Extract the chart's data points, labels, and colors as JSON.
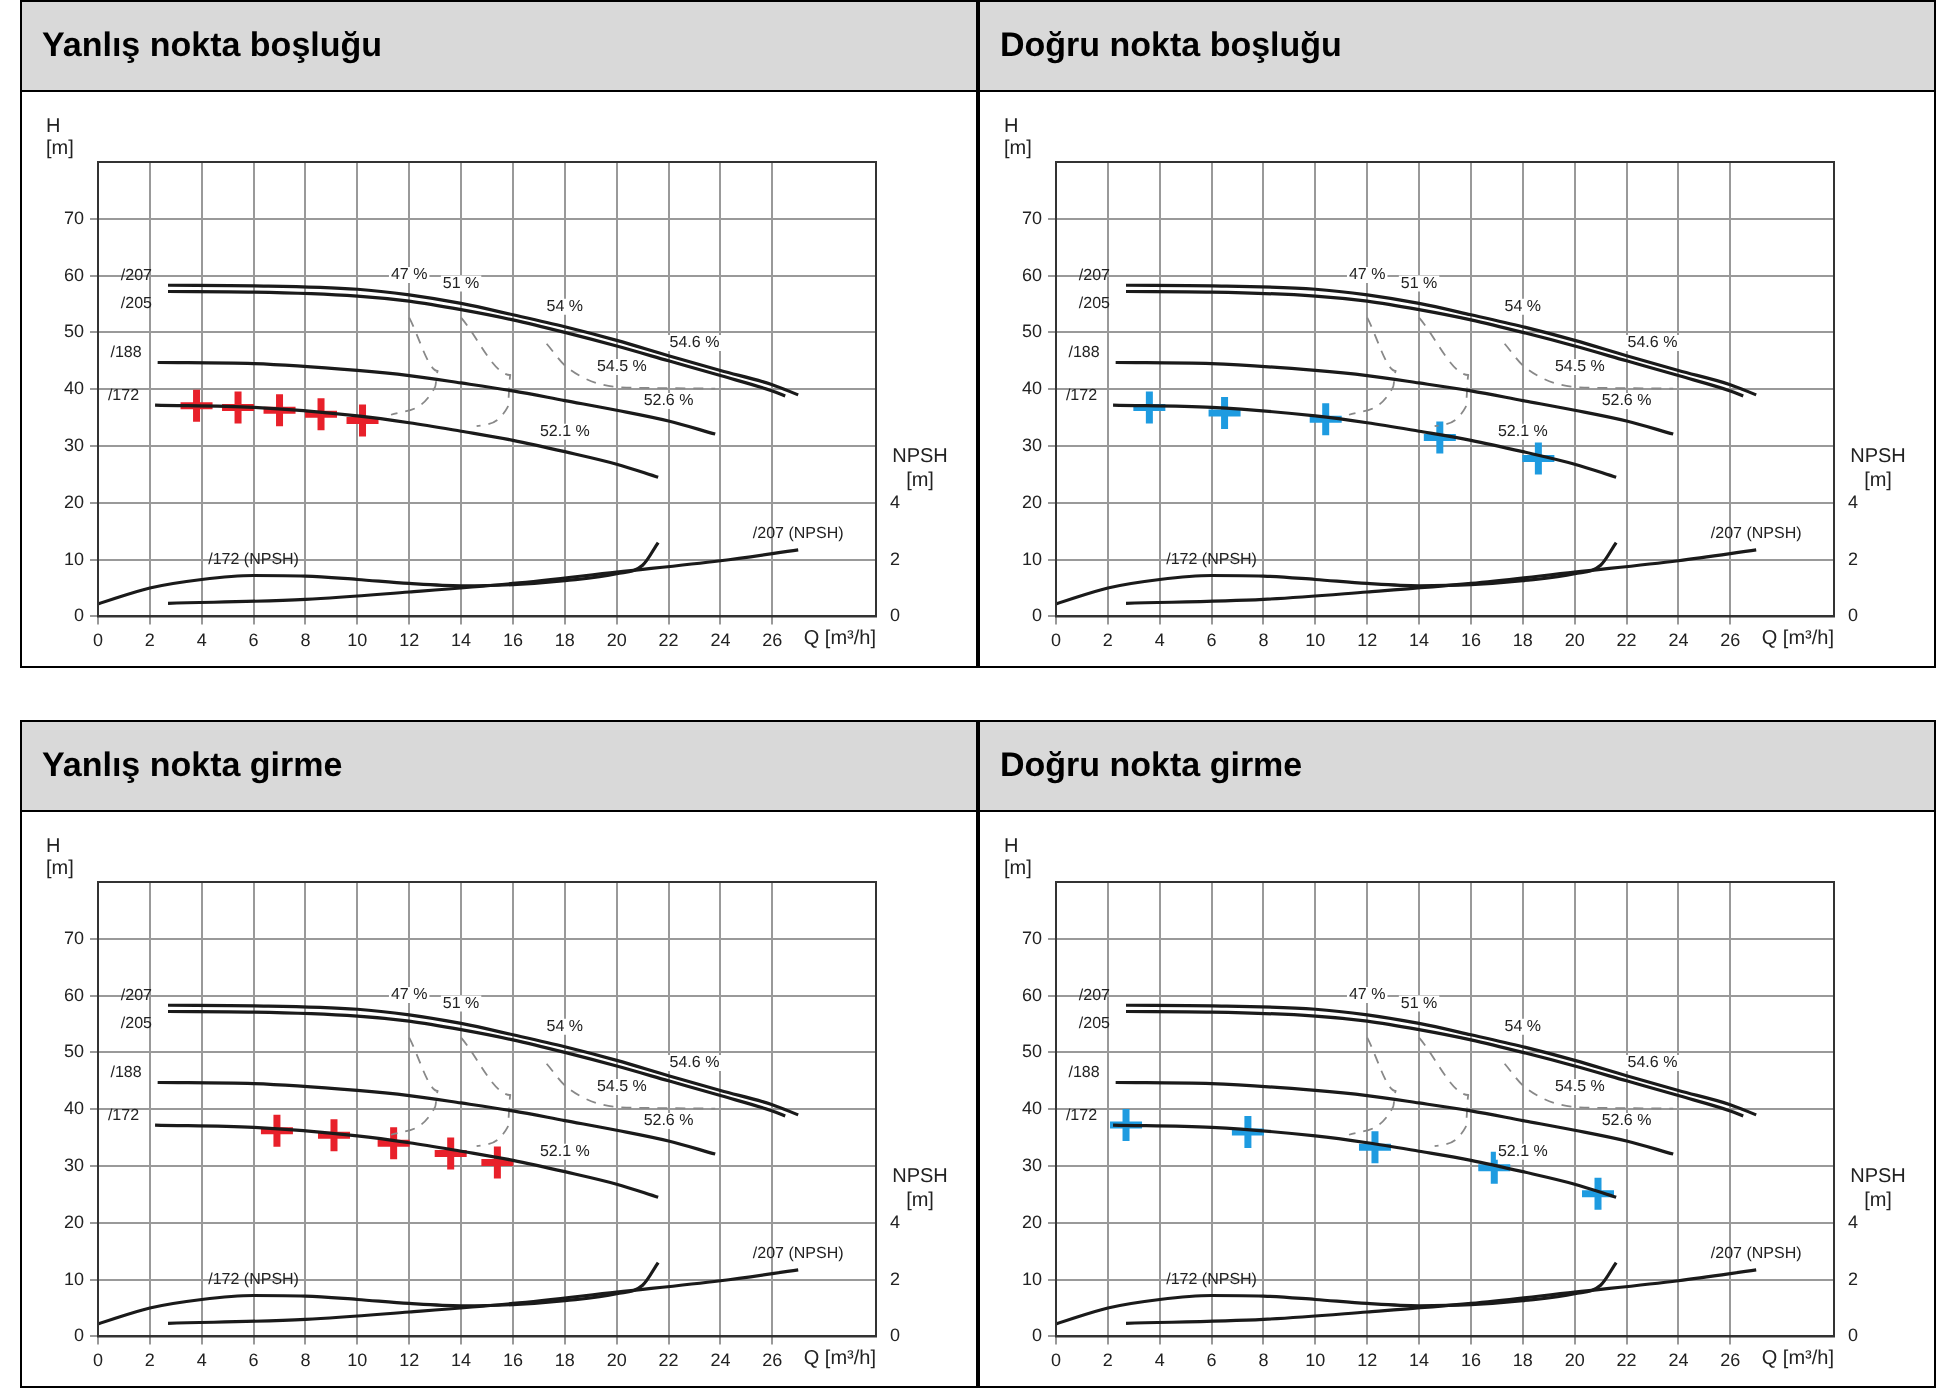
{
  "chart_data": [
    {
      "type": "line",
      "title": "Yanlış nokta boşluğu",
      "xlabel": "Q [m³/h]",
      "ylabel": "H [m]",
      "y2label": "NPSH [m]",
      "xlim": [
        0,
        30
      ],
      "xticks": [
        0,
        2,
        4,
        6,
        8,
        10,
        12,
        14,
        16,
        18,
        20,
        22,
        24,
        26
      ],
      "ylim": [
        0,
        80
      ],
      "yticks": [
        0,
        10,
        20,
        30,
        40,
        50,
        60,
        70
      ],
      "y2lim": [
        0,
        16
      ],
      "y2ticks": [
        0,
        2,
        4
      ],
      "grid": true,
      "series": [
        {
          "name": "/207",
          "color": "#1a1a1a",
          "x": [
            2.7,
            6,
            10,
            12,
            14,
            16,
            18,
            20,
            22,
            24,
            26,
            27
          ],
          "values": [
            58.3,
            58.2,
            57.6,
            56.6,
            55.1,
            53.1,
            51,
            48.6,
            45.9,
            43.3,
            40.8,
            39
          ]
        },
        {
          "name": "/205",
          "color": "#1a1a1a",
          "x": [
            2.7,
            6,
            10,
            12,
            14,
            16,
            18,
            20,
            22,
            24,
            26,
            26.5
          ],
          "values": [
            57.2,
            57.1,
            56.4,
            55.5,
            54,
            52.2,
            50,
            47.6,
            45,
            42.4,
            39.7,
            38.8
          ]
        },
        {
          "name": "/188",
          "color": "#1a1a1a",
          "x": [
            2.3,
            6,
            10,
            12,
            14,
            16,
            18,
            20,
            22,
            23.8
          ],
          "values": [
            44.7,
            44.5,
            43.3,
            42.4,
            41.1,
            39.7,
            38,
            36.3,
            34.4,
            32.1
          ]
        },
        {
          "name": "/172",
          "color": "#1a1a1a",
          "x": [
            2.2,
            6,
            10,
            12,
            14,
            16,
            18,
            20,
            21.6
          ],
          "values": [
            37.2,
            36.8,
            35.3,
            34.1,
            32.6,
            31,
            29,
            26.8,
            24.5
          ]
        },
        {
          "color": "#888888",
          "line_style": "dashed",
          "x": [
            12,
            13.1,
            13,
            11.3
          ],
          "values": [
            52.6,
            43.2,
            40.4,
            35.5
          ]
        },
        {
          "color": "#888888",
          "line_style": "dashed",
          "x": [
            14,
            15.9,
            15.8,
            14.6
          ],
          "values": [
            52.6,
            42.5,
            36.9,
            33.5
          ]
        },
        {
          "color": "#888888",
          "line_style": "dashed",
          "x": [
            17.3,
            18.1,
            20,
            21.5,
            23.8
          ],
          "values": [
            48,
            43.8,
            40.4,
            40.2,
            40.1
          ]
        },
        {
          "name": "/172 (NPSH)",
          "color": "#1a1a1a",
          "axis": "y2",
          "x": [
            0,
            2,
            4,
            6,
            8,
            10,
            12,
            14,
            16,
            18,
            20,
            21,
            21.6
          ],
          "values": [
            0.44,
            1,
            1.3,
            1.44,
            1.42,
            1.3,
            1.16,
            1.08,
            1.12,
            1.26,
            1.5,
            1.8,
            2.6
          ]
        },
        {
          "name": "/207 (NPSH)",
          "color": "#1a1a1a",
          "axis": "y2",
          "x": [
            2.7,
            8,
            12,
            16,
            20,
            24,
            27
          ],
          "values": [
            0.46,
            0.6,
            0.86,
            1.16,
            1.56,
            1.96,
            2.34
          ]
        },
        {
          "type": "scatter",
          "marker": "cross",
          "color": "#e8202a",
          "x": [
            3.8,
            5.4,
            7,
            8.6,
            10.2
          ],
          "values": [
            37.1,
            36.8,
            36.3,
            35.6,
            34.5
          ]
        }
      ],
      "annotations": [
        {
          "text": "47 %",
          "x": 12,
          "y": 56.6
        },
        {
          "text": "51 %",
          "x": 14,
          "y": 55.1
        },
        {
          "text": "54 %",
          "x": 18,
          "y": 51
        },
        {
          "text": "54.6 %",
          "x": 23,
          "y": 44.6
        },
        {
          "text": "54.5 %",
          "x": 20.2,
          "y": 40.4
        },
        {
          "text": "52.6 %",
          "x": 22,
          "y": 34.4
        },
        {
          "text": "52.1 %",
          "x": 18,
          "y": 29
        }
      ]
    },
    {
      "type": "line",
      "title": "Doğru nokta boşluğu",
      "xlabel": "Q [m³/h]",
      "ylabel": "H [m]",
      "y2label": "NPSH [m]",
      "xlim": [
        0,
        30
      ],
      "xticks": [
        0,
        2,
        4,
        6,
        8,
        10,
        12,
        14,
        16,
        18,
        20,
        22,
        24,
        26
      ],
      "ylim": [
        0,
        80
      ],
      "yticks": [
        0,
        10,
        20,
        30,
        40,
        50,
        60,
        70
      ],
      "y2lim": [
        0,
        16
      ],
      "y2ticks": [
        0,
        2,
        4
      ],
      "grid": true,
      "series": [
        {
          "name": "/207",
          "color": "#1a1a1a",
          "x": [
            2.7,
            6,
            10,
            12,
            14,
            16,
            18,
            20,
            22,
            24,
            26,
            27
          ],
          "values": [
            58.3,
            58.2,
            57.6,
            56.6,
            55.1,
            53.1,
            51,
            48.6,
            45.9,
            43.3,
            40.8,
            39
          ]
        },
        {
          "name": "/205",
          "color": "#1a1a1a",
          "x": [
            2.7,
            6,
            10,
            12,
            14,
            16,
            18,
            20,
            22,
            24,
            26,
            26.5
          ],
          "values": [
            57.2,
            57.1,
            56.4,
            55.5,
            54,
            52.2,
            50,
            47.6,
            45,
            42.4,
            39.7,
            38.8
          ]
        },
        {
          "name": "/188",
          "color": "#1a1a1a",
          "x": [
            2.3,
            6,
            10,
            12,
            14,
            16,
            18,
            20,
            22,
            23.8
          ],
          "values": [
            44.7,
            44.5,
            43.3,
            42.4,
            41.1,
            39.7,
            38,
            36.3,
            34.4,
            32.1
          ]
        },
        {
          "name": "/172",
          "color": "#1a1a1a",
          "x": [
            2.2,
            6,
            10,
            12,
            14,
            16,
            18,
            20,
            21.6
          ],
          "values": [
            37.2,
            36.8,
            35.3,
            34.1,
            32.6,
            31,
            29,
            26.8,
            24.5
          ]
        },
        {
          "color": "#888888",
          "line_style": "dashed",
          "x": [
            12,
            13.1,
            13,
            11.3
          ],
          "values": [
            52.6,
            43.2,
            40.4,
            35.5
          ]
        },
        {
          "color": "#888888",
          "line_style": "dashed",
          "x": [
            14,
            15.9,
            15.8,
            14.6
          ],
          "values": [
            52.6,
            42.5,
            36.9,
            33.5
          ]
        },
        {
          "color": "#888888",
          "line_style": "dashed",
          "x": [
            17.3,
            18.1,
            20,
            21.5,
            23.8
          ],
          "values": [
            48,
            43.8,
            40.4,
            40.2,
            40.1
          ]
        },
        {
          "name": "/172 (NPSH)",
          "color": "#1a1a1a",
          "axis": "y2",
          "x": [
            0,
            2,
            4,
            6,
            8,
            10,
            12,
            14,
            16,
            18,
            20,
            21,
            21.6
          ],
          "values": [
            0.44,
            1,
            1.3,
            1.44,
            1.42,
            1.3,
            1.16,
            1.08,
            1.12,
            1.26,
            1.5,
            1.8,
            2.6
          ]
        },
        {
          "name": "/207 (NPSH)",
          "color": "#1a1a1a",
          "axis": "y2",
          "x": [
            2.7,
            8,
            12,
            16,
            20,
            24,
            27
          ],
          "values": [
            0.46,
            0.6,
            0.86,
            1.16,
            1.56,
            1.96,
            2.34
          ]
        },
        {
          "type": "scatter",
          "marker": "cross",
          "color": "#1e9be0",
          "x": [
            3.6,
            6.5,
            10.4,
            14.8,
            18.6
          ],
          "values": [
            36.8,
            35.8,
            34.7,
            31.5,
            27.8
          ]
        }
      ],
      "annotations": [
        {
          "text": "47 %",
          "x": 12,
          "y": 56.6
        },
        {
          "text": "51 %",
          "x": 14,
          "y": 55.1
        },
        {
          "text": "54 %",
          "x": 18,
          "y": 51
        },
        {
          "text": "54.6 %",
          "x": 23,
          "y": 44.6
        },
        {
          "text": "54.5 %",
          "x": 20.2,
          "y": 40.4
        },
        {
          "text": "52.6 %",
          "x": 22,
          "y": 34.4
        },
        {
          "text": "52.1 %",
          "x": 18,
          "y": 29
        }
      ]
    },
    {
      "type": "line",
      "title": "Yanlış nokta girme",
      "xlabel": "Q [m³/h]",
      "ylabel": "H [m]",
      "y2label": "NPSH [m]",
      "xlim": [
        0,
        30
      ],
      "xticks": [
        0,
        2,
        4,
        6,
        8,
        10,
        12,
        14,
        16,
        18,
        20,
        22,
        24,
        26
      ],
      "ylim": [
        0,
        80
      ],
      "yticks": [
        0,
        10,
        20,
        30,
        40,
        50,
        60,
        70
      ],
      "y2lim": [
        0,
        16
      ],
      "y2ticks": [
        0,
        2,
        4
      ],
      "grid": true,
      "series": [
        {
          "name": "/207",
          "color": "#1a1a1a",
          "x": [
            2.7,
            6,
            10,
            12,
            14,
            16,
            18,
            20,
            22,
            24,
            26,
            27
          ],
          "values": [
            58.3,
            58.2,
            57.6,
            56.6,
            55.1,
            53.1,
            51,
            48.6,
            45.9,
            43.3,
            40.8,
            39
          ]
        },
        {
          "name": "/205",
          "color": "#1a1a1a",
          "x": [
            2.7,
            6,
            10,
            12,
            14,
            16,
            18,
            20,
            22,
            24,
            26,
            26.5
          ],
          "values": [
            57.2,
            57.1,
            56.4,
            55.5,
            54,
            52.2,
            50,
            47.6,
            45,
            42.4,
            39.7,
            38.8
          ]
        },
        {
          "name": "/188",
          "color": "#1a1a1a",
          "x": [
            2.3,
            6,
            10,
            12,
            14,
            16,
            18,
            20,
            22,
            23.8
          ],
          "values": [
            44.7,
            44.5,
            43.3,
            42.4,
            41.1,
            39.7,
            38,
            36.3,
            34.4,
            32.1
          ]
        },
        {
          "name": "/172",
          "color": "#1a1a1a",
          "x": [
            2.2,
            6,
            10,
            12,
            14,
            16,
            18,
            20,
            21.6
          ],
          "values": [
            37.2,
            36.8,
            35.3,
            34.1,
            32.6,
            31,
            29,
            26.8,
            24.5
          ]
        },
        {
          "color": "#888888",
          "line_style": "dashed",
          "x": [
            12,
            13.1,
            13,
            11.3
          ],
          "values": [
            52.6,
            43.2,
            40.4,
            35.5
          ]
        },
        {
          "color": "#888888",
          "line_style": "dashed",
          "x": [
            14,
            15.9,
            15.8,
            14.6
          ],
          "values": [
            52.6,
            42.5,
            36.9,
            33.5
          ]
        },
        {
          "color": "#888888",
          "line_style": "dashed",
          "x": [
            17.3,
            18.1,
            20,
            21.5,
            23.8
          ],
          "values": [
            48,
            43.8,
            40.4,
            40.2,
            40.1
          ]
        },
        {
          "name": "/172 (NPSH)",
          "color": "#1a1a1a",
          "axis": "y2",
          "x": [
            0,
            2,
            4,
            6,
            8,
            10,
            12,
            14,
            16,
            18,
            20,
            21,
            21.6
          ],
          "values": [
            0.44,
            1,
            1.3,
            1.44,
            1.42,
            1.3,
            1.16,
            1.08,
            1.12,
            1.26,
            1.5,
            1.8,
            2.6
          ]
        },
        {
          "name": "/207 (NPSH)",
          "color": "#1a1a1a",
          "axis": "y2",
          "x": [
            2.7,
            8,
            12,
            16,
            20,
            24,
            27
          ],
          "values": [
            0.46,
            0.6,
            0.86,
            1.16,
            1.56,
            1.96,
            2.34
          ]
        },
        {
          "type": "scatter",
          "marker": "cross",
          "color": "#e8202a",
          "x": [
            6.9,
            9.1,
            11.4,
            13.6,
            15.4
          ],
          "values": [
            36.2,
            35.4,
            34,
            32.2,
            30.6
          ]
        }
      ],
      "annotations": [
        {
          "text": "47 %",
          "x": 12,
          "y": 56.6
        },
        {
          "text": "51 %",
          "x": 14,
          "y": 55.1
        },
        {
          "text": "54 %",
          "x": 18,
          "y": 51
        },
        {
          "text": "54.6 %",
          "x": 23,
          "y": 44.6
        },
        {
          "text": "54.5 %",
          "x": 20.2,
          "y": 40.4
        },
        {
          "text": "52.6 %",
          "x": 22,
          "y": 34.4
        },
        {
          "text": "52.1 %",
          "x": 18,
          "y": 29
        }
      ]
    },
    {
      "type": "line",
      "title": "Doğru nokta girme",
      "xlabel": "Q [m³/h]",
      "ylabel": "H [m]",
      "y2label": "NPSH [m]",
      "xlim": [
        0,
        30
      ],
      "xticks": [
        0,
        2,
        4,
        6,
        8,
        10,
        12,
        14,
        16,
        18,
        20,
        22,
        24,
        26
      ],
      "ylim": [
        0,
        80
      ],
      "yticks": [
        0,
        10,
        20,
        30,
        40,
        50,
        60,
        70
      ],
      "y2lim": [
        0,
        16
      ],
      "y2ticks": [
        0,
        2,
        4
      ],
      "grid": true,
      "series": [
        {
          "name": "/207",
          "color": "#1a1a1a",
          "x": [
            2.7,
            6,
            10,
            12,
            14,
            16,
            18,
            20,
            22,
            24,
            26,
            27
          ],
          "values": [
            58.3,
            58.2,
            57.6,
            56.6,
            55.1,
            53.1,
            51,
            48.6,
            45.9,
            43.3,
            40.8,
            39
          ]
        },
        {
          "name": "/205",
          "color": "#1a1a1a",
          "x": [
            2.7,
            6,
            10,
            12,
            14,
            16,
            18,
            20,
            22,
            24,
            26,
            26.5
          ],
          "values": [
            57.2,
            57.1,
            56.4,
            55.5,
            54,
            52.2,
            50,
            47.6,
            45,
            42.4,
            39.7,
            38.8
          ]
        },
        {
          "name": "/188",
          "color": "#1a1a1a",
          "x": [
            2.3,
            6,
            10,
            12,
            14,
            16,
            18,
            20,
            22,
            23.8
          ],
          "values": [
            44.7,
            44.5,
            43.3,
            42.4,
            41.1,
            39.7,
            38,
            36.3,
            34.4,
            32.1
          ]
        },
        {
          "name": "/172",
          "color": "#1a1a1a",
          "x": [
            2.2,
            6,
            10,
            12,
            14,
            16,
            18,
            20,
            21.6
          ],
          "values": [
            37.2,
            36.8,
            35.3,
            34.1,
            32.6,
            31,
            29,
            26.8,
            24.5
          ]
        },
        {
          "color": "#888888",
          "line_style": "dashed",
          "x": [
            12,
            13.1,
            13,
            11.3
          ],
          "values": [
            52.6,
            43.2,
            40.4,
            35.5
          ]
        },
        {
          "color": "#888888",
          "line_style": "dashed",
          "x": [
            14,
            15.9,
            15.8,
            14.6
          ],
          "values": [
            52.6,
            42.5,
            36.9,
            33.5
          ]
        },
        {
          "color": "#888888",
          "line_style": "dashed",
          "x": [
            17.3,
            18.1,
            20,
            21.5,
            23.8
          ],
          "values": [
            48,
            43.8,
            40.4,
            40.2,
            40.1
          ]
        },
        {
          "name": "/172 (NPSH)",
          "color": "#1a1a1a",
          "axis": "y2",
          "x": [
            0,
            2,
            4,
            6,
            8,
            10,
            12,
            14,
            16,
            18,
            20,
            21,
            21.6
          ],
          "values": [
            0.44,
            1,
            1.3,
            1.44,
            1.42,
            1.3,
            1.16,
            1.08,
            1.12,
            1.26,
            1.5,
            1.8,
            2.6
          ]
        },
        {
          "name": "/207 (NPSH)",
          "color": "#1a1a1a",
          "axis": "y2",
          "x": [
            2.7,
            8,
            12,
            16,
            20,
            24,
            27
          ],
          "values": [
            0.46,
            0.6,
            0.86,
            1.16,
            1.56,
            1.96,
            2.34
          ]
        },
        {
          "type": "scatter",
          "marker": "cross",
          "color": "#1e9be0",
          "x": [
            2.7,
            7.4,
            12.3,
            16.9,
            20.9
          ],
          "values": [
            37.2,
            36,
            33.3,
            29.7,
            25.1
          ]
        }
      ],
      "annotations": [
        {
          "text": "47 %",
          "x": 12,
          "y": 56.6
        },
        {
          "text": "51 %",
          "x": 14,
          "y": 55.1
        },
        {
          "text": "54 %",
          "x": 18,
          "y": 51
        },
        {
          "text": "54.6 %",
          "x": 23,
          "y": 44.6
        },
        {
          "text": "54.5 %",
          "x": 20.2,
          "y": 40.4
        },
        {
          "text": "52.6 %",
          "x": 22,
          "y": 34.4
        },
        {
          "text": "52.1 %",
          "x": 18,
          "y": 29
        }
      ]
    }
  ]
}
